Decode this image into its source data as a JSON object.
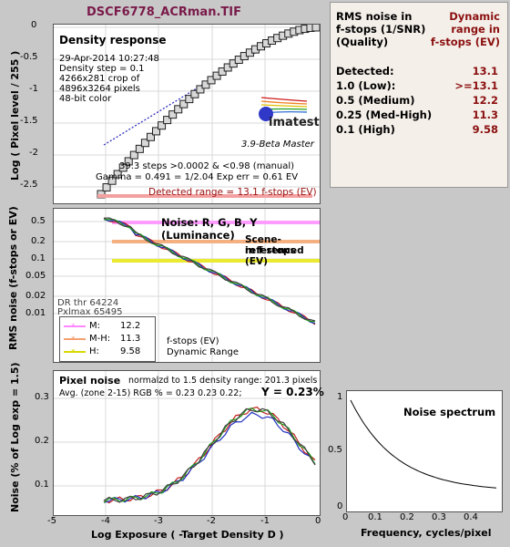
{
  "window": {
    "title": "DSCF6778_ACRman.TIF"
  },
  "density": {
    "heading": "Density response",
    "info": [
      "29-Apr-2014 10:27:48",
      "Density step = 0.1",
      "4266x281 crop of",
      "4896x3264 pixels",
      "48-bit color"
    ],
    "brand": "imatest",
    "version": "3.9-Beta  Master",
    "steps_line": "39.3 steps >0.0002 & <0.98 (manual)",
    "gamma_line": "Gamma = 0.491 = 1/2.04  Exp err = 0.61 EV",
    "detected_range": "Detected range = 13.1 f-stops (EV)",
    "ylabel": "Log ( Pixel level / 255 )",
    "yticks": [
      "0",
      "-0.5",
      "-1",
      "-1.5",
      "-2",
      "-2.5"
    ]
  },
  "noise_fstops": {
    "heading": "Noise: R, G, B, Y (Luminance)",
    "note_line1": "Scene-referenced",
    "note_line2": "in f-stops (EV)",
    "ylabel": "RMS noise (f-stops or EV)",
    "yticks": [
      "0.5",
      "0.2",
      "0.1",
      "0.05",
      "0.02",
      "0.01"
    ],
    "dr_thr": "DR thr 64224",
    "pxlmax": "Pxlmax 65495",
    "legend": [
      {
        "label": "M:",
        "value": "12.2",
        "color": "#ff88ff"
      },
      {
        "label": "M-H:",
        "value": "11.3",
        "color": "#f4a070"
      },
      {
        "label": "H:",
        "value": "9.58",
        "color": "#d8d800"
      }
    ],
    "legend_caption1": "f-stops (EV)",
    "legend_caption2": "Dynamic Range"
  },
  "pixel_noise": {
    "heading": "Pixel noise",
    "norm_line": "normalzd to 1.5 density range: 201.3 pixels",
    "avg_line": "Avg. (zone 2-15) RGB % = 0.23  0.23  0.22;",
    "y_value": "Y = 0.23%",
    "ylabel": "Noise (% of Log exp = 1.5)",
    "yticks": [
      "0.3",
      "0.2",
      "0.1"
    ],
    "xticks": [
      "-5",
      "-4",
      "-3",
      "-2",
      "-1",
      "0"
    ],
    "xlabel": "Log Exposure ( -Target Density D )"
  },
  "spectrum": {
    "heading": "Noise spectrum",
    "yticks": [
      "1",
      "0.5",
      "0"
    ],
    "xticks": [
      "0",
      "0.1",
      "0.2",
      "0.3",
      "0.4"
    ],
    "xlabel": "Frequency, cycles/pixel"
  },
  "summary": {
    "col1_line1": "RMS noise in",
    "col1_line2": "f-stops (1/SNR)",
    "col1_line3": "(Quality)",
    "col2_line1": "Dynamic",
    "col2_line2": "range in",
    "col2_line3": "f-stops (EV)",
    "rows": [
      {
        "label": "Detected:",
        "value": "13.1"
      },
      {
        "label": "1.0  (Low):",
        "value": ">=13.1"
      },
      {
        "label": "0.5  (Medium)",
        "value": "12.2"
      },
      {
        "label": "0.25 (Med-High)",
        "value": "11.3"
      },
      {
        "label": "0.1  (High)",
        "value": "9.58"
      }
    ],
    "value_color": "#8b1010"
  }
}
